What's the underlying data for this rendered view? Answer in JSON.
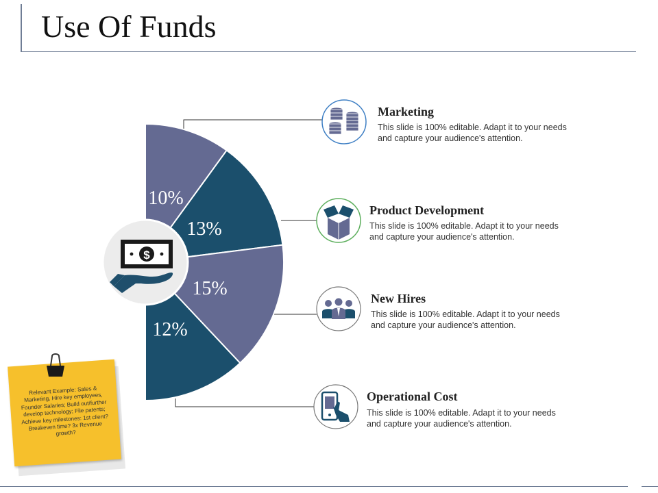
{
  "title": "Use Of Funds",
  "chart_data": {
    "type": "pie",
    "title": "Use Of Funds",
    "categories": [
      "Marketing",
      "Product Development",
      "New Hires",
      "Operational Cost"
    ],
    "values": [
      10,
      13,
      15,
      12
    ],
    "labels": [
      "10%",
      "13%",
      "15%",
      "12%"
    ],
    "colors": [
      "#646a92",
      "#1b4f6c",
      "#646a92",
      "#1b4f6c"
    ]
  },
  "center_icon": "money-in-hand-icon",
  "items": [
    {
      "title": "Marketing",
      "desc": "This slide is 100% editable. Adapt it to your needs and capture your audience's attention.",
      "icon": "coins-stack-icon",
      "ring": "#3e7fc4"
    },
    {
      "title": "Product Development",
      "desc": "This slide is 100% editable. Adapt it to your needs and capture your audience's attention.",
      "icon": "box-icon",
      "ring": "#5cae5c"
    },
    {
      "title": "New Hires",
      "desc": "This slide is 100% editable. Adapt it to your needs and capture your audience's attention.",
      "icon": "team-icon",
      "ring": "#666666"
    },
    {
      "title": "Operational Cost",
      "desc": "This slide is 100% editable. Adapt it to your needs and capture your audience's attention.",
      "icon": "mobile-shopping-icon",
      "ring": "#666666"
    }
  ],
  "note": {
    "text": "Relevant Example: Sales & Marketing, Hire key employees, Founder Salaries; Build out/further develop technology; File patents; Achieve key milestones: 1st client? Breakeven time? 3x Revenue growth?"
  }
}
